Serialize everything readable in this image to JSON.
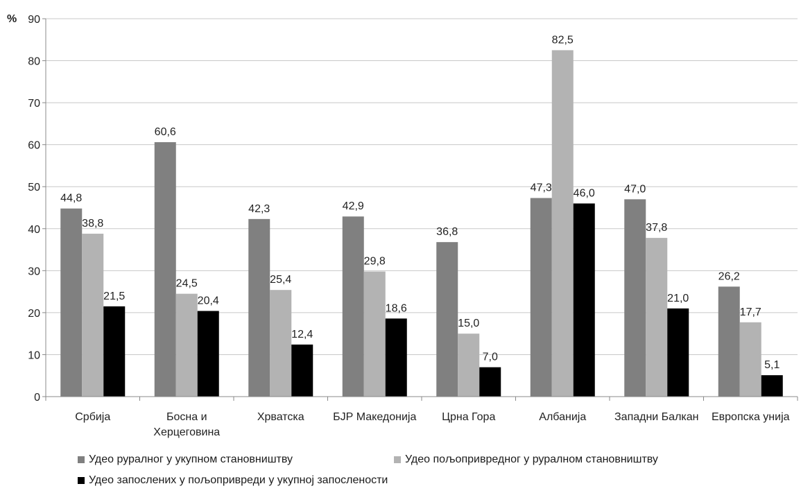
{
  "chart_data": {
    "type": "bar",
    "ylabel": "%",
    "ylim": [
      0,
      90
    ],
    "yticks": [
      0,
      10,
      20,
      30,
      40,
      50,
      60,
      70,
      80,
      90
    ],
    "grid": true,
    "legend_position": "bottom",
    "categories": [
      [
        "Србија"
      ],
      [
        "Босна и",
        "Херцеговина"
      ],
      [
        "Хрватска"
      ],
      [
        "БЈР Македонија"
      ],
      [
        "Црна Гора"
      ],
      [
        "Албанија"
      ],
      [
        "Западни Балкан"
      ],
      [
        "Европска унија"
      ]
    ],
    "series": [
      {
        "name": "Удео руралног у укупном становништву",
        "color": "#808080",
        "values": [
          44.8,
          60.6,
          42.3,
          42.9,
          36.8,
          47.3,
          47.0,
          26.2
        ],
        "labels": [
          "44,8",
          "60,6",
          "42,3",
          "42,9",
          "36,8",
          "47,3",
          "47,0",
          "26,2"
        ]
      },
      {
        "name": "Удео пољопривредног у руралном становништву",
        "color": "#b3b3b3",
        "values": [
          38.8,
          24.5,
          25.4,
          29.8,
          15.0,
          82.5,
          37.8,
          17.7
        ],
        "labels": [
          "38,8",
          "24,5",
          "25,4",
          "29,8",
          "15,0",
          "82,5",
          "37,8",
          "17,7"
        ]
      },
      {
        "name": "Удео запослених у пољопривреди у укупној запослености",
        "color": "#000000",
        "values": [
          21.5,
          20.4,
          12.4,
          18.6,
          7.0,
          46.0,
          21.0,
          5.1
        ],
        "labels": [
          "21,5",
          "20,4",
          "12,4",
          "18,6",
          "7,0",
          "46,0",
          "21,0",
          "5,1"
        ]
      }
    ]
  }
}
